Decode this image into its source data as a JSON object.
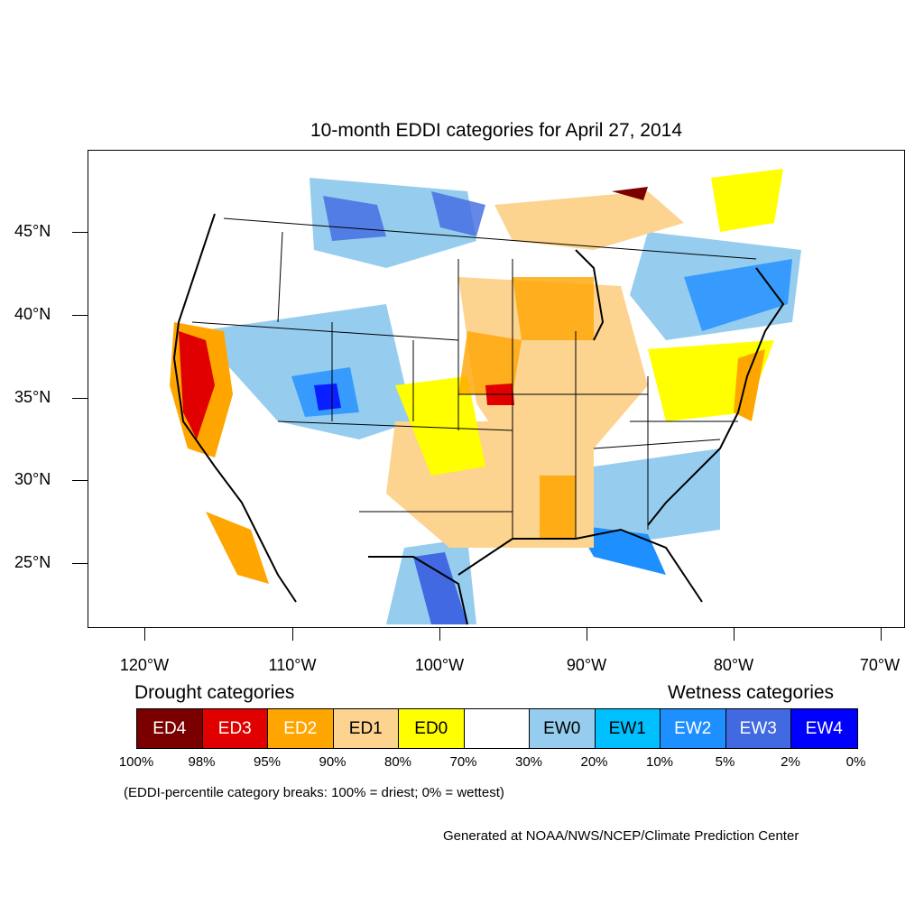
{
  "title": "10-month EDDI categories for April 27, 2014",
  "y_axis": [
    "45°N",
    "40°N",
    "35°N",
    "30°N",
    "25°N"
  ],
  "x_axis": [
    "120°W",
    "110°W",
    "100°W",
    "90°W",
    "80°W",
    "70°W"
  ],
  "legend": {
    "drought_heading": "Drought categories",
    "wetness_heading": "Wetness categories",
    "categories": [
      {
        "label": "ED4",
        "color": "#7a0000",
        "text_color": "#ffffff"
      },
      {
        "label": "ED3",
        "color": "#e00000",
        "text_color": "#ffffff"
      },
      {
        "label": "ED2",
        "color": "#ffa500",
        "text_color": "#ffffff"
      },
      {
        "label": "ED1",
        "color": "#fcd38f",
        "text_color": "#000000"
      },
      {
        "label": "ED0",
        "color": "#ffff00",
        "text_color": "#000000"
      },
      {
        "label": "",
        "color": "#ffffff",
        "text_color": "#000000"
      },
      {
        "label": "EW0",
        "color": "#96cdef",
        "text_color": "#000000"
      },
      {
        "label": "EW1",
        "color": "#00bfff",
        "text_color": "#000000"
      },
      {
        "label": "EW2",
        "color": "#1e8fff",
        "text_color": "#ffffff"
      },
      {
        "label": "EW3",
        "color": "#4169e1",
        "text_color": "#ffffff"
      },
      {
        "label": "EW4",
        "color": "#0000ff",
        "text_color": "#ffffff"
      }
    ],
    "breaks": [
      "100%",
      "98%",
      "95%",
      "90%",
      "80%",
      "70%",
      "30%",
      "20%",
      "10%",
      "5%",
      "2%",
      "0%"
    ]
  },
  "note": "(EDDI-percentile category breaks: 100% = driest; 0% = wettest)",
  "credit": "Generated at NOAA/NWS/NCEP/Climate Prediction Center"
}
